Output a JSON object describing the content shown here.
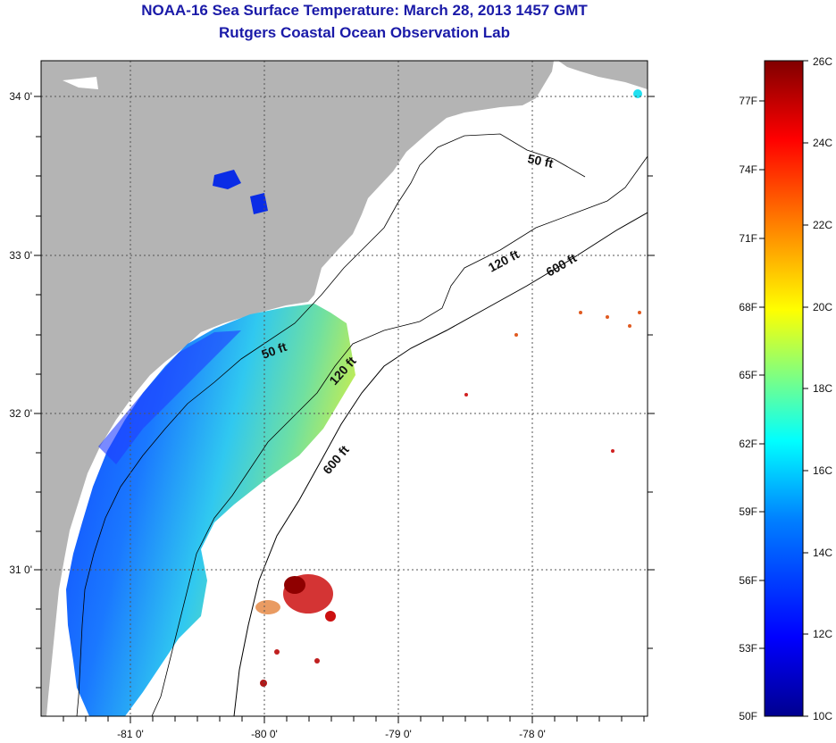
{
  "header": {
    "title": "NOAA-16 Sea Surface Temperature:  March 28, 2013 1457 GMT",
    "subtitle": "Rutgers Coastal Ocean Observation Lab"
  },
  "map": {
    "lon_ticks": [
      "-81 0'",
      "-80 0'",
      "-79 0'",
      "-78 0'"
    ],
    "lat_ticks": [
      "34 0'",
      "33 0'",
      "32 0'",
      "31 0'"
    ],
    "contours": [
      "50 ft",
      "120 ft",
      "600 ft",
      "50 ft",
      "120 ft",
      "600 ft"
    ],
    "colors": {
      "land": "#b4b4b4",
      "ocean": "#ffffff",
      "grid": "#555555"
    }
  },
  "colorbar": {
    "fahrenheit_labels": [
      "77F",
      "74F",
      "71F",
      "68F",
      "65F",
      "62F",
      "59F",
      "56F",
      "53F",
      "50F"
    ],
    "celsius_labels": [
      "26C",
      "24C",
      "22C",
      "20C",
      "18C",
      "16C",
      "14C",
      "12C",
      "10C"
    ],
    "scale_colors": [
      "#00008f",
      "#0000ff",
      "#0080ff",
      "#00ffff",
      "#80ff80",
      "#ffff00",
      "#ff8000",
      "#ff0000",
      "#800000"
    ]
  }
}
